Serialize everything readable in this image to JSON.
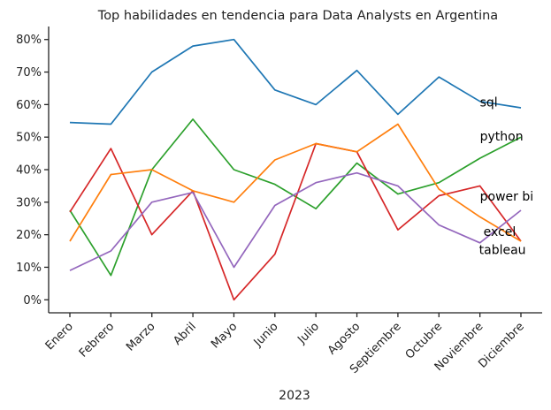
{
  "chart_data": {
    "type": "line",
    "title": "Top habilidades en tendencia para Data Analysts en Argentina",
    "xlabel": "2023",
    "ylabel": "",
    "categories": [
      "Enero",
      "Febrero",
      "Marzo",
      "Abril",
      "Mayo",
      "Junio",
      "Julio",
      "Agosto",
      "Septiembre",
      "Octubre",
      "Noviembre",
      "Diciembre"
    ],
    "yticks": [
      "0%",
      "10%",
      "20%",
      "30%",
      "40%",
      "50%",
      "60%",
      "70%",
      "80%"
    ],
    "ytick_values": [
      0,
      10,
      20,
      30,
      40,
      50,
      60,
      70,
      80
    ],
    "ylim": [
      -4,
      84
    ],
    "grid": false,
    "series": [
      {
        "name": "sql",
        "color": "#1f77b4",
        "values": [
          54.5,
          54,
          70,
          78,
          80,
          64.5,
          60,
          70.5,
          57,
          68.5,
          61,
          59
        ]
      },
      {
        "name": "python",
        "color": "#2ca02c",
        "values": [
          27.5,
          7.5,
          40,
          55.5,
          40,
          35.5,
          28,
          42,
          32.5,
          36,
          43.5,
          50
        ]
      },
      {
        "name": "power bi",
        "color": "#d62728",
        "values": [
          27,
          46.5,
          20,
          33.5,
          0,
          14,
          48,
          45.5,
          21.5,
          32,
          35,
          18
        ]
      },
      {
        "name": "excel",
        "color": "#ff7f0e",
        "values": [
          18,
          38.5,
          40,
          33.5,
          30,
          43,
          48,
          45.5,
          54,
          34,
          25.5,
          18
        ]
      },
      {
        "name": "tableau",
        "color": "#9467bd",
        "values": [
          9,
          15,
          30,
          33,
          10,
          29,
          36,
          39,
          35,
          23,
          17.5,
          27.5
        ]
      }
    ]
  }
}
